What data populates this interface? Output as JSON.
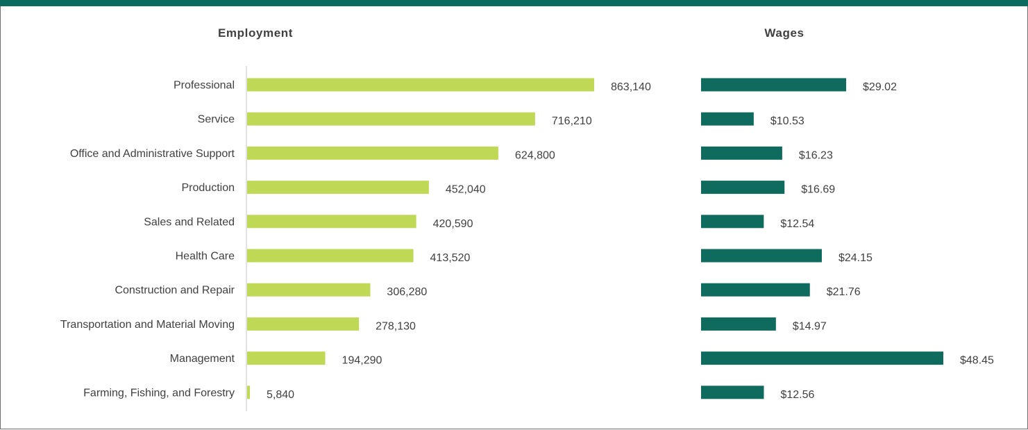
{
  "colors": {
    "frame_top": "#0b6b5e",
    "employment_bar": "#bfd957",
    "wages_bar": "#0f6b5e",
    "axis_line": "#d9d9d9",
    "text": "#404040"
  },
  "chart_data": [
    {
      "type": "bar",
      "orientation": "horizontal",
      "title": "Employment",
      "categories": [
        "Professional",
        "Service",
        "Office and Administrative Support",
        "Production",
        "Sales and Related",
        "Health Care",
        "Construction and Repair",
        "Transportation and Material Moving",
        "Management",
        "Farming, Fishing, and Forestry"
      ],
      "values": [
        863140,
        716210,
        624800,
        452040,
        420590,
        413520,
        306280,
        278130,
        194290,
        5840
      ],
      "value_labels": [
        "863,140",
        "716,210",
        "624,800",
        "452,040",
        "420,590",
        "413,520",
        "306,280",
        "278,130",
        "194,290",
        "5,840"
      ],
      "xlim": [
        0,
        863140
      ]
    },
    {
      "type": "bar",
      "orientation": "horizontal",
      "title": "Wages",
      "categories": [
        "Professional",
        "Service",
        "Office and Administrative Support",
        "Production",
        "Sales and Related",
        "Health Care",
        "Construction and Repair",
        "Transportation and Material Moving",
        "Management",
        "Farming, Fishing, and Forestry"
      ],
      "values": [
        29.02,
        10.53,
        16.23,
        16.69,
        12.54,
        24.15,
        21.76,
        14.97,
        48.45,
        12.56
      ],
      "value_labels": [
        "$29.02",
        "$10.53",
        "$16.23",
        "$16.69",
        "$12.54",
        "$24.15",
        "$21.76",
        "$14.97",
        "$48.45",
        "$12.56"
      ],
      "xlim": [
        0,
        48.45
      ]
    }
  ]
}
